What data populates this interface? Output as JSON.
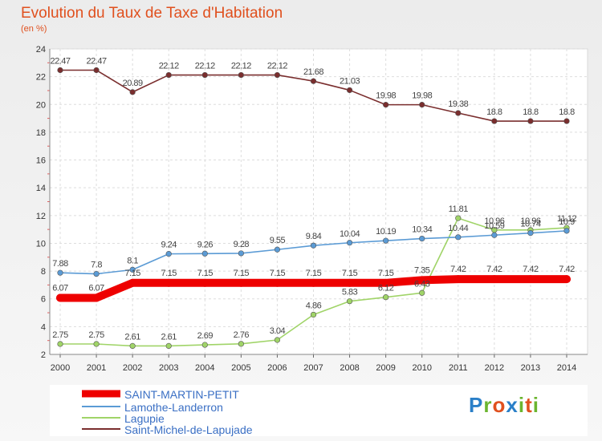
{
  "header": {
    "title": "Evolution du Taux de Taxe d'Habitation",
    "unit": "(en %)"
  },
  "brand": {
    "letters": [
      "P",
      "r",
      "o",
      "x",
      "i",
      "t",
      "i"
    ],
    "colors": [
      "#2a7fc8",
      "#6bb52f",
      "#e0501e",
      "#2a7fc8",
      "#6bb52f",
      "#e0501e",
      "#6bb52f"
    ]
  },
  "chart_data": {
    "type": "line",
    "title": "Evolution du Taux de Taxe d'Habitation",
    "ylabel": "(en %)",
    "xlabel": "",
    "ylim": [
      2,
      24
    ],
    "yticks": [
      2,
      4,
      6,
      8,
      10,
      12,
      14,
      16,
      18,
      20,
      22,
      24
    ],
    "grid": true,
    "legend_position": "bottom-left",
    "x": [
      "2000",
      "2001",
      "2002",
      "2003",
      "2004",
      "2005",
      "2006",
      "2007",
      "2008",
      "2009",
      "2010",
      "2011",
      "2012",
      "2013",
      "2014"
    ],
    "series": [
      {
        "name": "SAINT-MARTIN-PETIT",
        "color": "#ee0000",
        "values": [
          6.07,
          6.07,
          7.15,
          7.15,
          7.15,
          7.15,
          7.15,
          7.15,
          7.15,
          7.15,
          7.35,
          7.42,
          7.42,
          7.42,
          7.42
        ],
        "labels": [
          "6.07",
          "6.07",
          "7.15",
          "7.15",
          "7.15",
          "7.15",
          "7.15",
          "7.15",
          "7.15",
          "7.15",
          "7.35",
          "7.42",
          "7.42",
          "7.42",
          "7.42"
        ]
      },
      {
        "name": "Lamothe-Landerron",
        "color": "#5b9bd5",
        "values": [
          7.88,
          7.8,
          8.1,
          9.24,
          9.26,
          9.28,
          9.55,
          9.84,
          10.04,
          10.19,
          10.34,
          10.44,
          10.59,
          10.74,
          10.9
        ],
        "labels": [
          "7.88",
          "7.8",
          "8.1",
          "9.24",
          "9.26",
          "9.28",
          "9.55",
          "9.84",
          "10.04",
          "10.19",
          "10.34",
          "10.44",
          "10.59",
          "10.74",
          "10.9"
        ]
      },
      {
        "name": "Lagupie",
        "color": "#a0d468",
        "values": [
          2.75,
          2.75,
          2.61,
          2.61,
          2.69,
          2.76,
          3.04,
          4.86,
          5.83,
          6.12,
          6.43,
          11.81,
          10.96,
          10.96,
          11.12
        ],
        "labels": [
          "2.75",
          "2.75",
          "2.61",
          "2.61",
          "2.69",
          "2.76",
          "3.04",
          "4.86",
          "5.83",
          "6.12",
          "6.43",
          "11.81",
          "10.96",
          "10.96",
          "11.12"
        ]
      },
      {
        "name": "Saint-Michel-de-Lapujade",
        "color": "#7a2e2e",
        "values": [
          22.47,
          22.47,
          20.89,
          22.12,
          22.12,
          22.12,
          22.12,
          21.68,
          21.03,
          19.98,
          19.98,
          19.38,
          18.8,
          18.8,
          18.8
        ],
        "labels": [
          "22.47",
          "22.47",
          "20.89",
          "22.12",
          "22.12",
          "22.12",
          "22.12",
          "21.68",
          "21.03",
          "19.98",
          "19.98",
          "19.38",
          "18.8",
          "18.8",
          "18.8"
        ]
      }
    ]
  }
}
